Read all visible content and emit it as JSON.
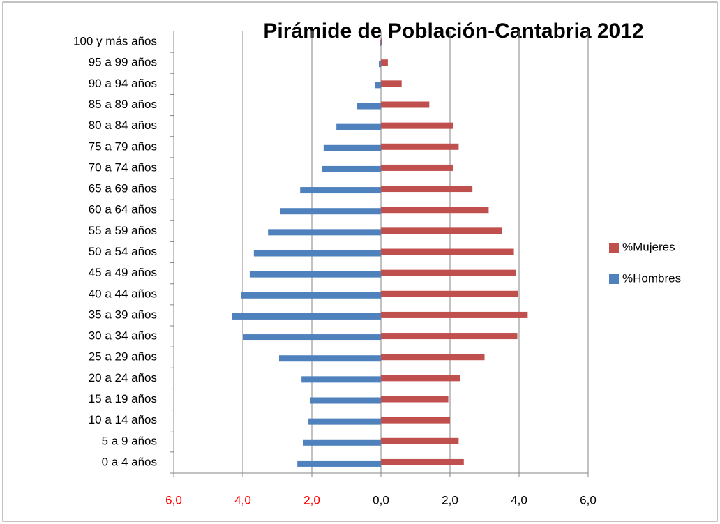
{
  "chart_data": {
    "type": "pyramid",
    "title": "Pirámide de Población-Cantabria 2012",
    "categories": [
      "0 a 4 años",
      "5 a 9 años",
      "10 a 14 años",
      "15 a 19 años",
      "20 a 24 años",
      "25 a 29 años",
      "30 a 34 años",
      "35 a 39 años",
      "40 a 44 años",
      "45 a 49 años",
      "50 a 54 años",
      "55 a 59 años",
      "60 a 64 años",
      "65 a 69 años",
      "70 a 74 años",
      "75 a 79 años",
      "80 a 84 años",
      "85 a 89 años",
      "90 a 94 años",
      "95 a 99 años",
      "100 y más  años"
    ],
    "series": [
      {
        "name": "%Mujeres",
        "color": "#c0504d",
        "values": [
          2.4,
          2.25,
          2.0,
          1.95,
          2.3,
          3.0,
          3.95,
          4.25,
          3.97,
          3.9,
          3.85,
          3.5,
          3.12,
          2.65,
          2.1,
          2.25,
          2.1,
          1.4,
          0.6,
          0.2,
          0.02
        ]
      },
      {
        "name": "%Hombres",
        "color": "#4f81bd",
        "values": [
          -2.42,
          -2.26,
          -2.1,
          -2.06,
          -2.3,
          -2.95,
          -4.0,
          -4.32,
          -4.04,
          -3.8,
          -3.68,
          -3.27,
          -2.91,
          -2.34,
          -1.7,
          -1.66,
          -1.29,
          -0.69,
          -0.18,
          -0.06,
          -0.02
        ]
      }
    ],
    "xlim": [
      -6,
      6
    ],
    "xticks": [
      {
        "value": -6,
        "label": "6,0",
        "color": "#ff0000"
      },
      {
        "value": -4,
        "label": "4,0",
        "color": "#ff0000"
      },
      {
        "value": -2,
        "label": "2,0",
        "color": "#ff0000"
      },
      {
        "value": 0,
        "label": "0,0",
        "color": "#000000"
      },
      {
        "value": 2,
        "label": "2,0",
        "color": "#000000"
      },
      {
        "value": 4,
        "label": "4,0",
        "color": "#000000"
      },
      {
        "value": 6,
        "label": "6,0",
        "color": "#000000"
      }
    ],
    "grid": true,
    "legend": "right"
  }
}
